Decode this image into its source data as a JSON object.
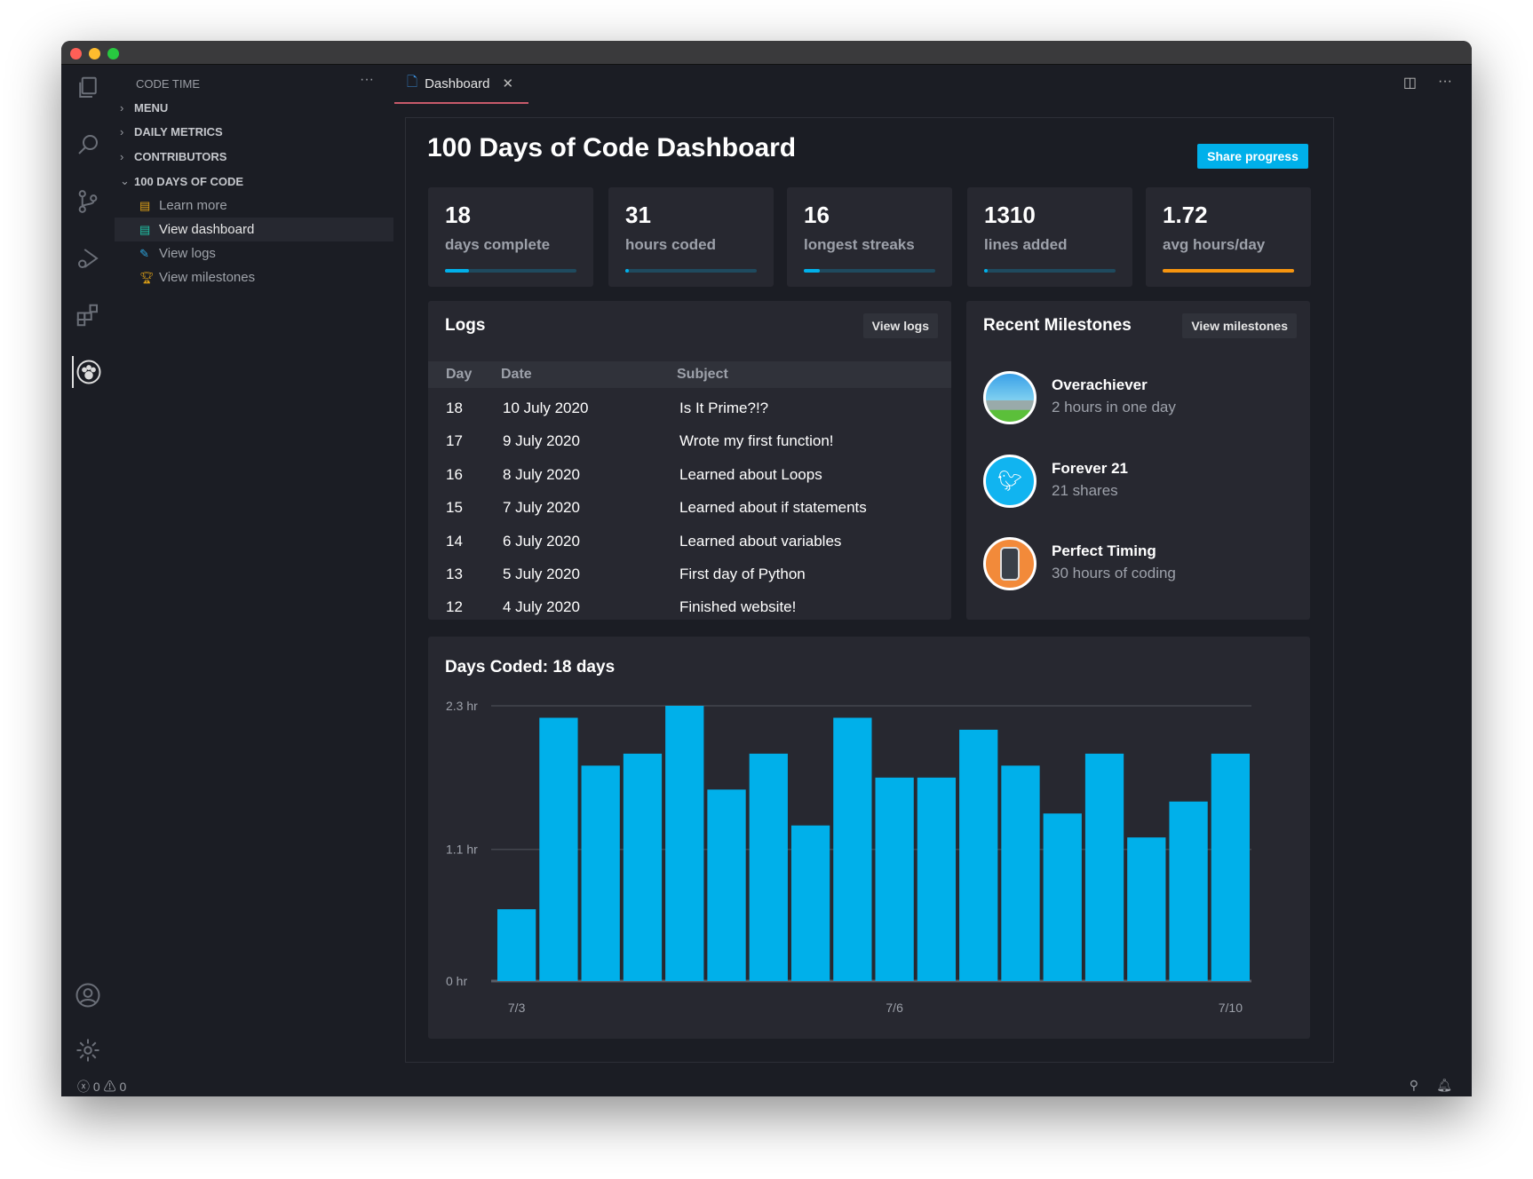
{
  "sidebar": {
    "title": "CODE TIME",
    "more": "···",
    "sections": [
      {
        "label": "MENU",
        "expanded": false
      },
      {
        "label": "DAILY METRICS",
        "expanded": false
      },
      {
        "label": "CONTRIBUTORS",
        "expanded": false
      },
      {
        "label": "100 DAYS OF CODE",
        "expanded": true
      }
    ],
    "items": [
      {
        "label": "Learn more",
        "icon": "document-icon",
        "color": "#e2a316"
      },
      {
        "label": "View dashboard",
        "icon": "clipboard-icon",
        "color": "#1fc6a8",
        "selected": true
      },
      {
        "label": "View logs",
        "icon": "edit-icon",
        "color": "#2ea7e0"
      },
      {
        "label": "View milestones",
        "icon": "trophy-icon",
        "color": "#e2a316"
      }
    ]
  },
  "tab": {
    "label": "Dashboard",
    "close": "✕"
  },
  "dashboard": {
    "title": "100 Days of Code Dashboard",
    "share_label": "Share progress",
    "stats": [
      {
        "value": "18",
        "label": "days complete",
        "progress": 0.18,
        "color": "#00b0ea"
      },
      {
        "value": "31",
        "label": "hours coded",
        "progress": 0.03,
        "color": "#00b0ea"
      },
      {
        "value": "16",
        "label": "longest streaks",
        "progress": 0.12,
        "color": "#00b0ea"
      },
      {
        "value": "1310",
        "label": "lines added",
        "progress": 0.03,
        "color": "#00b0ea"
      },
      {
        "value": "1.72",
        "label": "avg hours/day",
        "progress": 1.0,
        "color": "#f7950f"
      }
    ],
    "logs": {
      "title": "Logs",
      "button": "View logs",
      "columns": [
        "Day",
        "Date",
        "Subject"
      ],
      "rows": [
        [
          "18",
          "10 July 2020",
          "Is It Prime?!?"
        ],
        [
          "17",
          "9 July 2020",
          "Wrote my first function!"
        ],
        [
          "16",
          "8 July 2020",
          "Learned about Loops"
        ],
        [
          "15",
          "7 July 2020",
          "Learned about if statements"
        ],
        [
          "14",
          "6 July 2020",
          "Learned about variables"
        ],
        [
          "13",
          "5 July 2020",
          "First day of Python"
        ],
        [
          "12",
          "4 July 2020",
          "Finished website!"
        ]
      ]
    },
    "milestones": {
      "title": "Recent Milestones",
      "button": "View milestones",
      "items": [
        {
          "title": "Overachiever",
          "subtitle": "2 hours in one day"
        },
        {
          "title": "Forever 21",
          "subtitle": "21 shares"
        },
        {
          "title": "Perfect Timing",
          "subtitle": "30 hours of coding"
        }
      ]
    }
  },
  "chart_data": {
    "type": "bar",
    "title": "Days Coded: 18 days",
    "color": "#00b0ea",
    "values": [
      0.6,
      2.2,
      1.8,
      1.9,
      2.3,
      1.6,
      1.9,
      1.3,
      2.2,
      1.7,
      1.7,
      2.1,
      1.8,
      1.4,
      1.9,
      1.2,
      1.5,
      1.9
    ],
    "x_ticks": [
      {
        "index": 0,
        "label": "7/3"
      },
      {
        "index": 9,
        "label": "7/6"
      },
      {
        "index": 17,
        "label": "7/10"
      }
    ],
    "y_ticks": [
      {
        "value": 0,
        "label": "0 hr"
      },
      {
        "value": 1.1,
        "label": "1.1 hr"
      },
      {
        "value": 2.3,
        "label": "2.3 hr"
      }
    ],
    "ylim": [
      0,
      2.3
    ],
    "grid": true
  },
  "status": {
    "errors": "0",
    "warnings": "0"
  }
}
